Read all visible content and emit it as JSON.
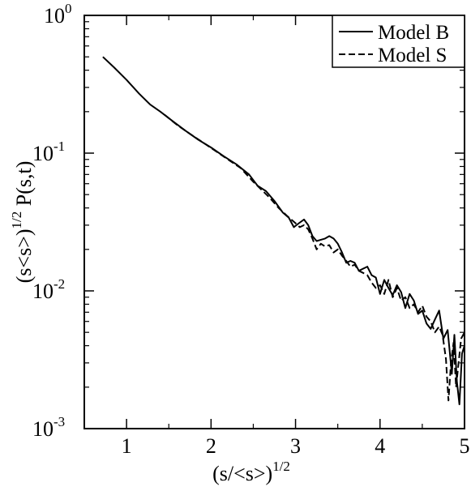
{
  "chart_data": {
    "type": "line",
    "title": "",
    "xlabel": {
      "base": "(s/<s>)",
      "sup": "1/2"
    },
    "ylabel": {
      "base": "(s<s>)",
      "sup": "1/2",
      "tail": " P(s,t)"
    },
    "xlim": [
      0.5,
      5
    ],
    "ylim": [
      0.001,
      1
    ],
    "yscale": "log",
    "grid": false,
    "legend_position": "top-right",
    "x_ticks": [
      {
        "value": 1,
        "label": "1"
      },
      {
        "value": 2,
        "label": "2"
      },
      {
        "value": 3,
        "label": "3"
      },
      {
        "value": 4,
        "label": "4"
      },
      {
        "value": 5,
        "label": "5"
      }
    ],
    "y_ticks": [
      {
        "value": 1,
        "base": "10",
        "exp": "0"
      },
      {
        "value": 0.1,
        "base": "10",
        "exp": "-1"
      },
      {
        "value": 0.01,
        "base": "10",
        "exp": "-2"
      },
      {
        "value": 0.001,
        "base": "10",
        "exp": "-3"
      }
    ],
    "series": [
      {
        "name": "Model B",
        "style": "solid",
        "points": [
          [
            0.72,
            0.5
          ],
          [
            0.85,
            0.42
          ],
          [
            1.0,
            0.34
          ],
          [
            1.15,
            0.27
          ],
          [
            1.28,
            0.225
          ],
          [
            1.4,
            0.2
          ],
          [
            1.55,
            0.17
          ],
          [
            1.7,
            0.145
          ],
          [
            1.85,
            0.125
          ],
          [
            2.0,
            0.11
          ],
          [
            2.15,
            0.095
          ],
          [
            2.3,
            0.083
          ],
          [
            2.45,
            0.07
          ],
          [
            2.55,
            0.058
          ],
          [
            2.65,
            0.053
          ],
          [
            2.75,
            0.045
          ],
          [
            2.85,
            0.037
          ],
          [
            2.92,
            0.034
          ],
          [
            2.98,
            0.029
          ],
          [
            3.04,
            0.031
          ],
          [
            3.1,
            0.033
          ],
          [
            3.15,
            0.03
          ],
          [
            3.2,
            0.025
          ],
          [
            3.25,
            0.023
          ],
          [
            3.3,
            0.0235
          ],
          [
            3.35,
            0.024
          ],
          [
            3.4,
            0.025
          ],
          [
            3.45,
            0.024
          ],
          [
            3.5,
            0.022
          ],
          [
            3.55,
            0.019
          ],
          [
            3.6,
            0.016
          ],
          [
            3.65,
            0.0165
          ],
          [
            3.7,
            0.016
          ],
          [
            3.75,
            0.014
          ],
          [
            3.8,
            0.0145
          ],
          [
            3.85,
            0.015
          ],
          [
            3.9,
            0.013
          ],
          [
            3.95,
            0.0125
          ],
          [
            4.0,
            0.0095
          ],
          [
            4.05,
            0.012
          ],
          [
            4.1,
            0.0105
          ],
          [
            4.15,
            0.0093
          ],
          [
            4.2,
            0.011
          ],
          [
            4.25,
            0.0098
          ],
          [
            4.3,
            0.0075
          ],
          [
            4.35,
            0.0095
          ],
          [
            4.4,
            0.0085
          ],
          [
            4.45,
            0.0068
          ],
          [
            4.5,
            0.0072
          ],
          [
            4.55,
            0.0058
          ],
          [
            4.6,
            0.0053
          ],
          [
            4.65,
            0.0062
          ],
          [
            4.7,
            0.0072
          ],
          [
            4.75,
            0.0045
          ],
          [
            4.8,
            0.0052
          ],
          [
            4.85,
            0.0025
          ],
          [
            4.88,
            0.0048
          ],
          [
            4.91,
            0.0022
          ],
          [
            4.94,
            0.0015
          ],
          [
            4.97,
            0.0035
          ],
          [
            5.0,
            0.004
          ]
        ]
      },
      {
        "name": "Model S",
        "style": "dashed",
        "points": [
          [
            1.45,
            0.19
          ],
          [
            1.6,
            0.16
          ],
          [
            1.75,
            0.138
          ],
          [
            1.9,
            0.12
          ],
          [
            2.05,
            0.104
          ],
          [
            2.2,
            0.09
          ],
          [
            2.35,
            0.078
          ],
          [
            2.5,
            0.062
          ],
          [
            2.6,
            0.054
          ],
          [
            2.7,
            0.047
          ],
          [
            2.8,
            0.04
          ],
          [
            2.9,
            0.035
          ],
          [
            3.0,
            0.031
          ],
          [
            3.05,
            0.029
          ],
          [
            3.1,
            0.03
          ],
          [
            3.15,
            0.028
          ],
          [
            3.2,
            0.024
          ],
          [
            3.25,
            0.02
          ],
          [
            3.3,
            0.022
          ],
          [
            3.35,
            0.021
          ],
          [
            3.4,
            0.0215
          ],
          [
            3.45,
            0.019
          ],
          [
            3.5,
            0.02
          ],
          [
            3.55,
            0.018
          ],
          [
            3.6,
            0.0165
          ],
          [
            3.65,
            0.015
          ],
          [
            3.7,
            0.0155
          ],
          [
            3.75,
            0.014
          ],
          [
            3.8,
            0.0135
          ],
          [
            3.85,
            0.013
          ],
          [
            3.9,
            0.0115
          ],
          [
            3.95,
            0.0105
          ],
          [
            4.0,
            0.011
          ],
          [
            4.05,
            0.0095
          ],
          [
            4.1,
            0.012
          ],
          [
            4.15,
            0.009
          ],
          [
            4.2,
            0.0105
          ],
          [
            4.25,
            0.0085
          ],
          [
            4.3,
            0.009
          ],
          [
            4.35,
            0.0075
          ],
          [
            4.4,
            0.008
          ],
          [
            4.45,
            0.007
          ],
          [
            4.5,
            0.0078
          ],
          [
            4.55,
            0.0065
          ],
          [
            4.6,
            0.006
          ],
          [
            4.65,
            0.005
          ],
          [
            4.7,
            0.0055
          ],
          [
            4.74,
            0.0048
          ],
          [
            4.78,
            0.0032
          ],
          [
            4.81,
            0.0016
          ],
          [
            4.84,
            0.003
          ],
          [
            4.87,
            0.0042
          ],
          [
            4.9,
            0.002
          ],
          [
            4.93,
            0.003
          ],
          [
            4.96,
            0.0045
          ],
          [
            5.0,
            0.005
          ]
        ]
      }
    ]
  }
}
